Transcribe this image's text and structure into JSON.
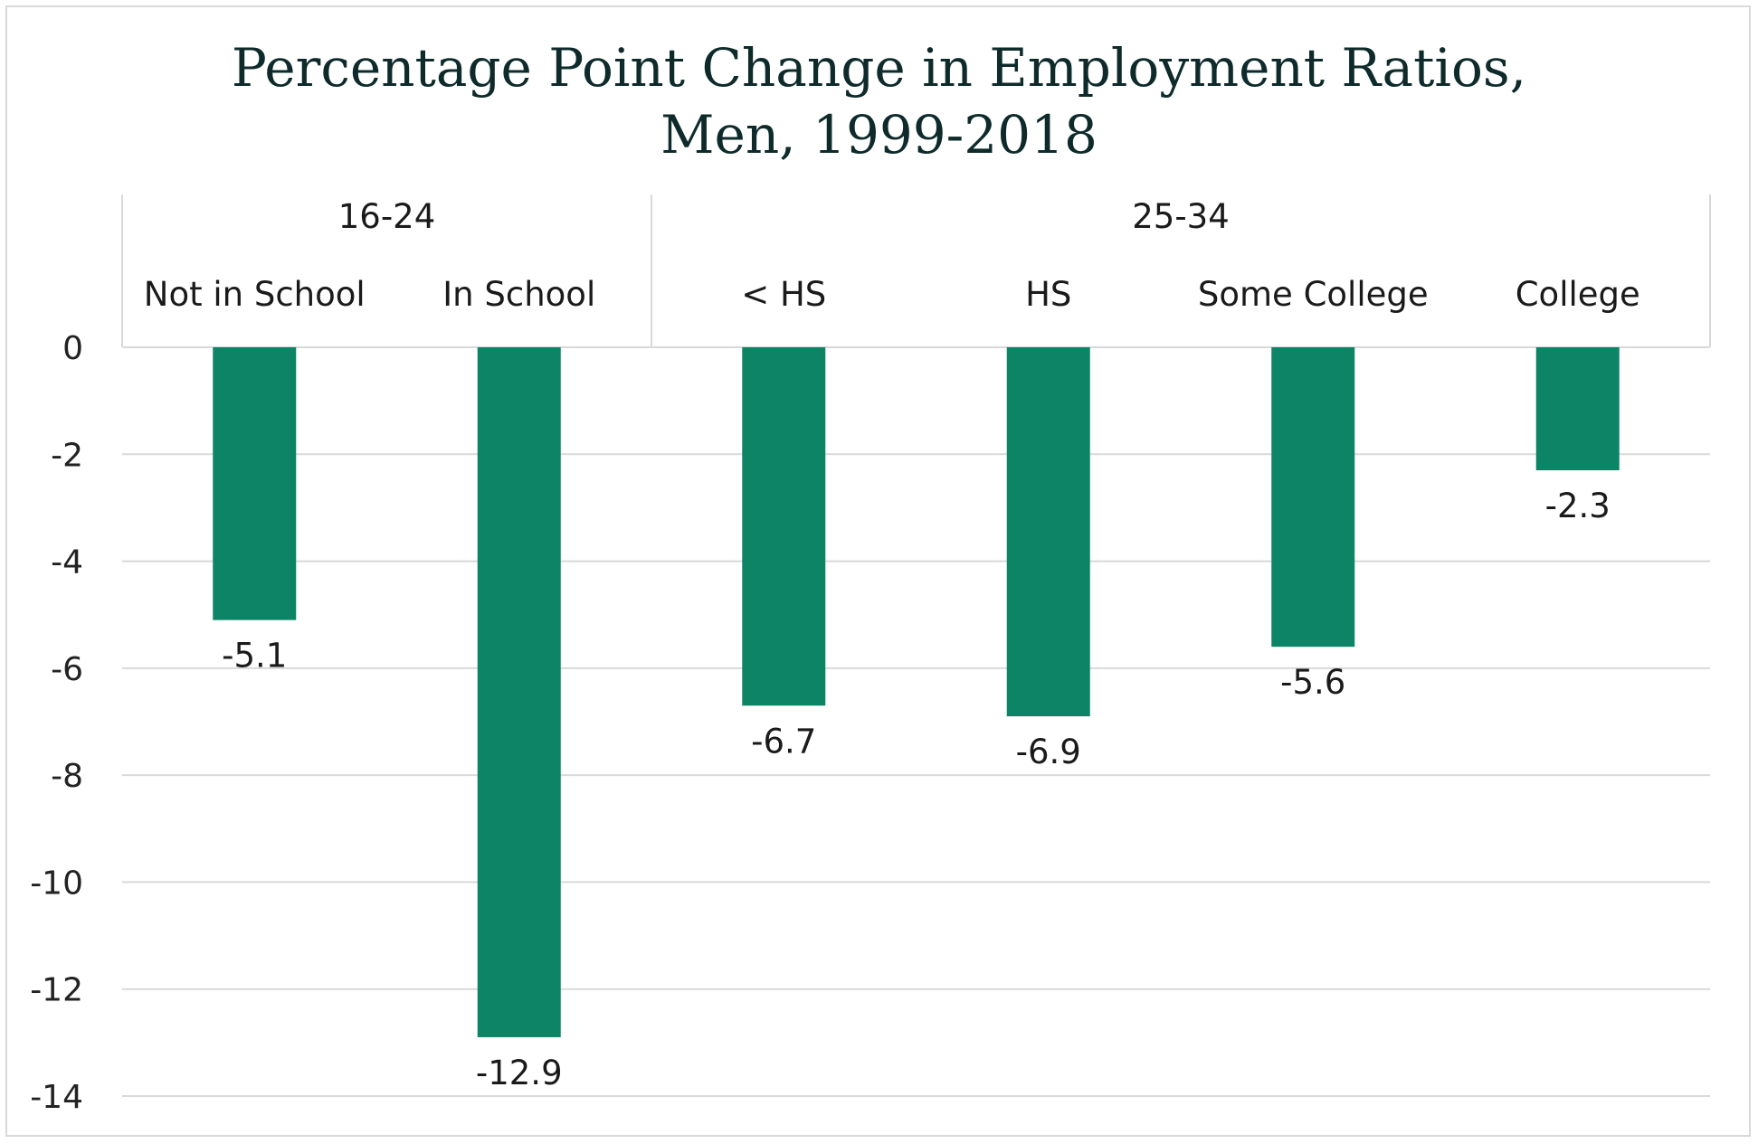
{
  "chart_data": {
    "type": "bar",
    "title": [
      "Percentage Point Change in Employment Ratios,",
      "Men, 1999-2018"
    ],
    "groups": [
      {
        "label": "16-24",
        "categories": [
          "Not in School",
          "In School"
        ]
      },
      {
        "label": "25-34",
        "categories": [
          "< HS",
          "HS",
          "Some College",
          "College"
        ]
      }
    ],
    "categories": [
      "Not in School",
      "In School",
      "< HS",
      "HS",
      "Some College",
      "College"
    ],
    "values": [
      -5.1,
      -12.9,
      -6.7,
      -6.9,
      -5.6,
      -2.3
    ],
    "data_labels": [
      "-5.1",
      "-12.9",
      "-6.7",
      "-6.9",
      "-5.6",
      "-2.3"
    ],
    "y_ticks": [
      "0",
      "-2",
      "-4",
      "-6",
      "-8",
      "-10",
      "-12",
      "-14"
    ],
    "ylim": [
      -14,
      0
    ],
    "xlabel": "",
    "ylabel": "",
    "grid": true,
    "bar_color": "#0e8466",
    "grid_color": "#d9d9d9"
  }
}
